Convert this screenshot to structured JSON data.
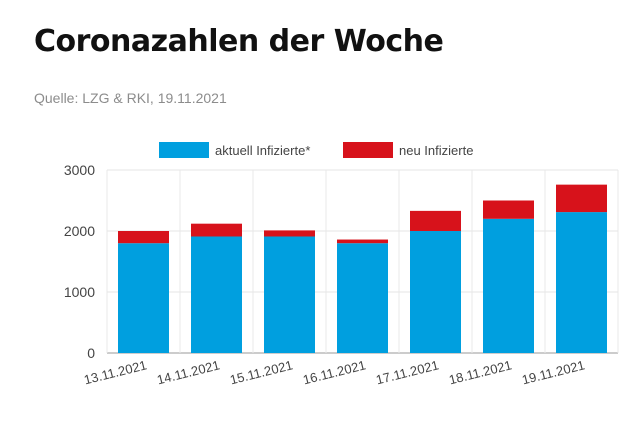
{
  "header": {
    "title": "Coronazahlen der Woche",
    "source": "Quelle: LZG & RKI, 19.11.2021"
  },
  "chart_data": {
    "type": "bar",
    "stacked": true,
    "categories": [
      "13.11.2021",
      "14.11.2021",
      "15.11.2021",
      "16.11.2021",
      "17.11.2021",
      "18.11.2021",
      "19.11.2021"
    ],
    "series": [
      {
        "name": "aktuell Infizierte*",
        "color": "#009fdf",
        "values": [
          1800,
          1910,
          1910,
          1800,
          2000,
          2200,
          2310
        ]
      },
      {
        "name": "neu Infizierte",
        "color": "#d7121b",
        "values": [
          200,
          210,
          100,
          60,
          330,
          300,
          450
        ]
      }
    ],
    "yticks": [
      0,
      1000,
      2000,
      3000
    ],
    "ylim": [
      0,
      3000
    ],
    "grid": true,
    "legend": "top"
  }
}
